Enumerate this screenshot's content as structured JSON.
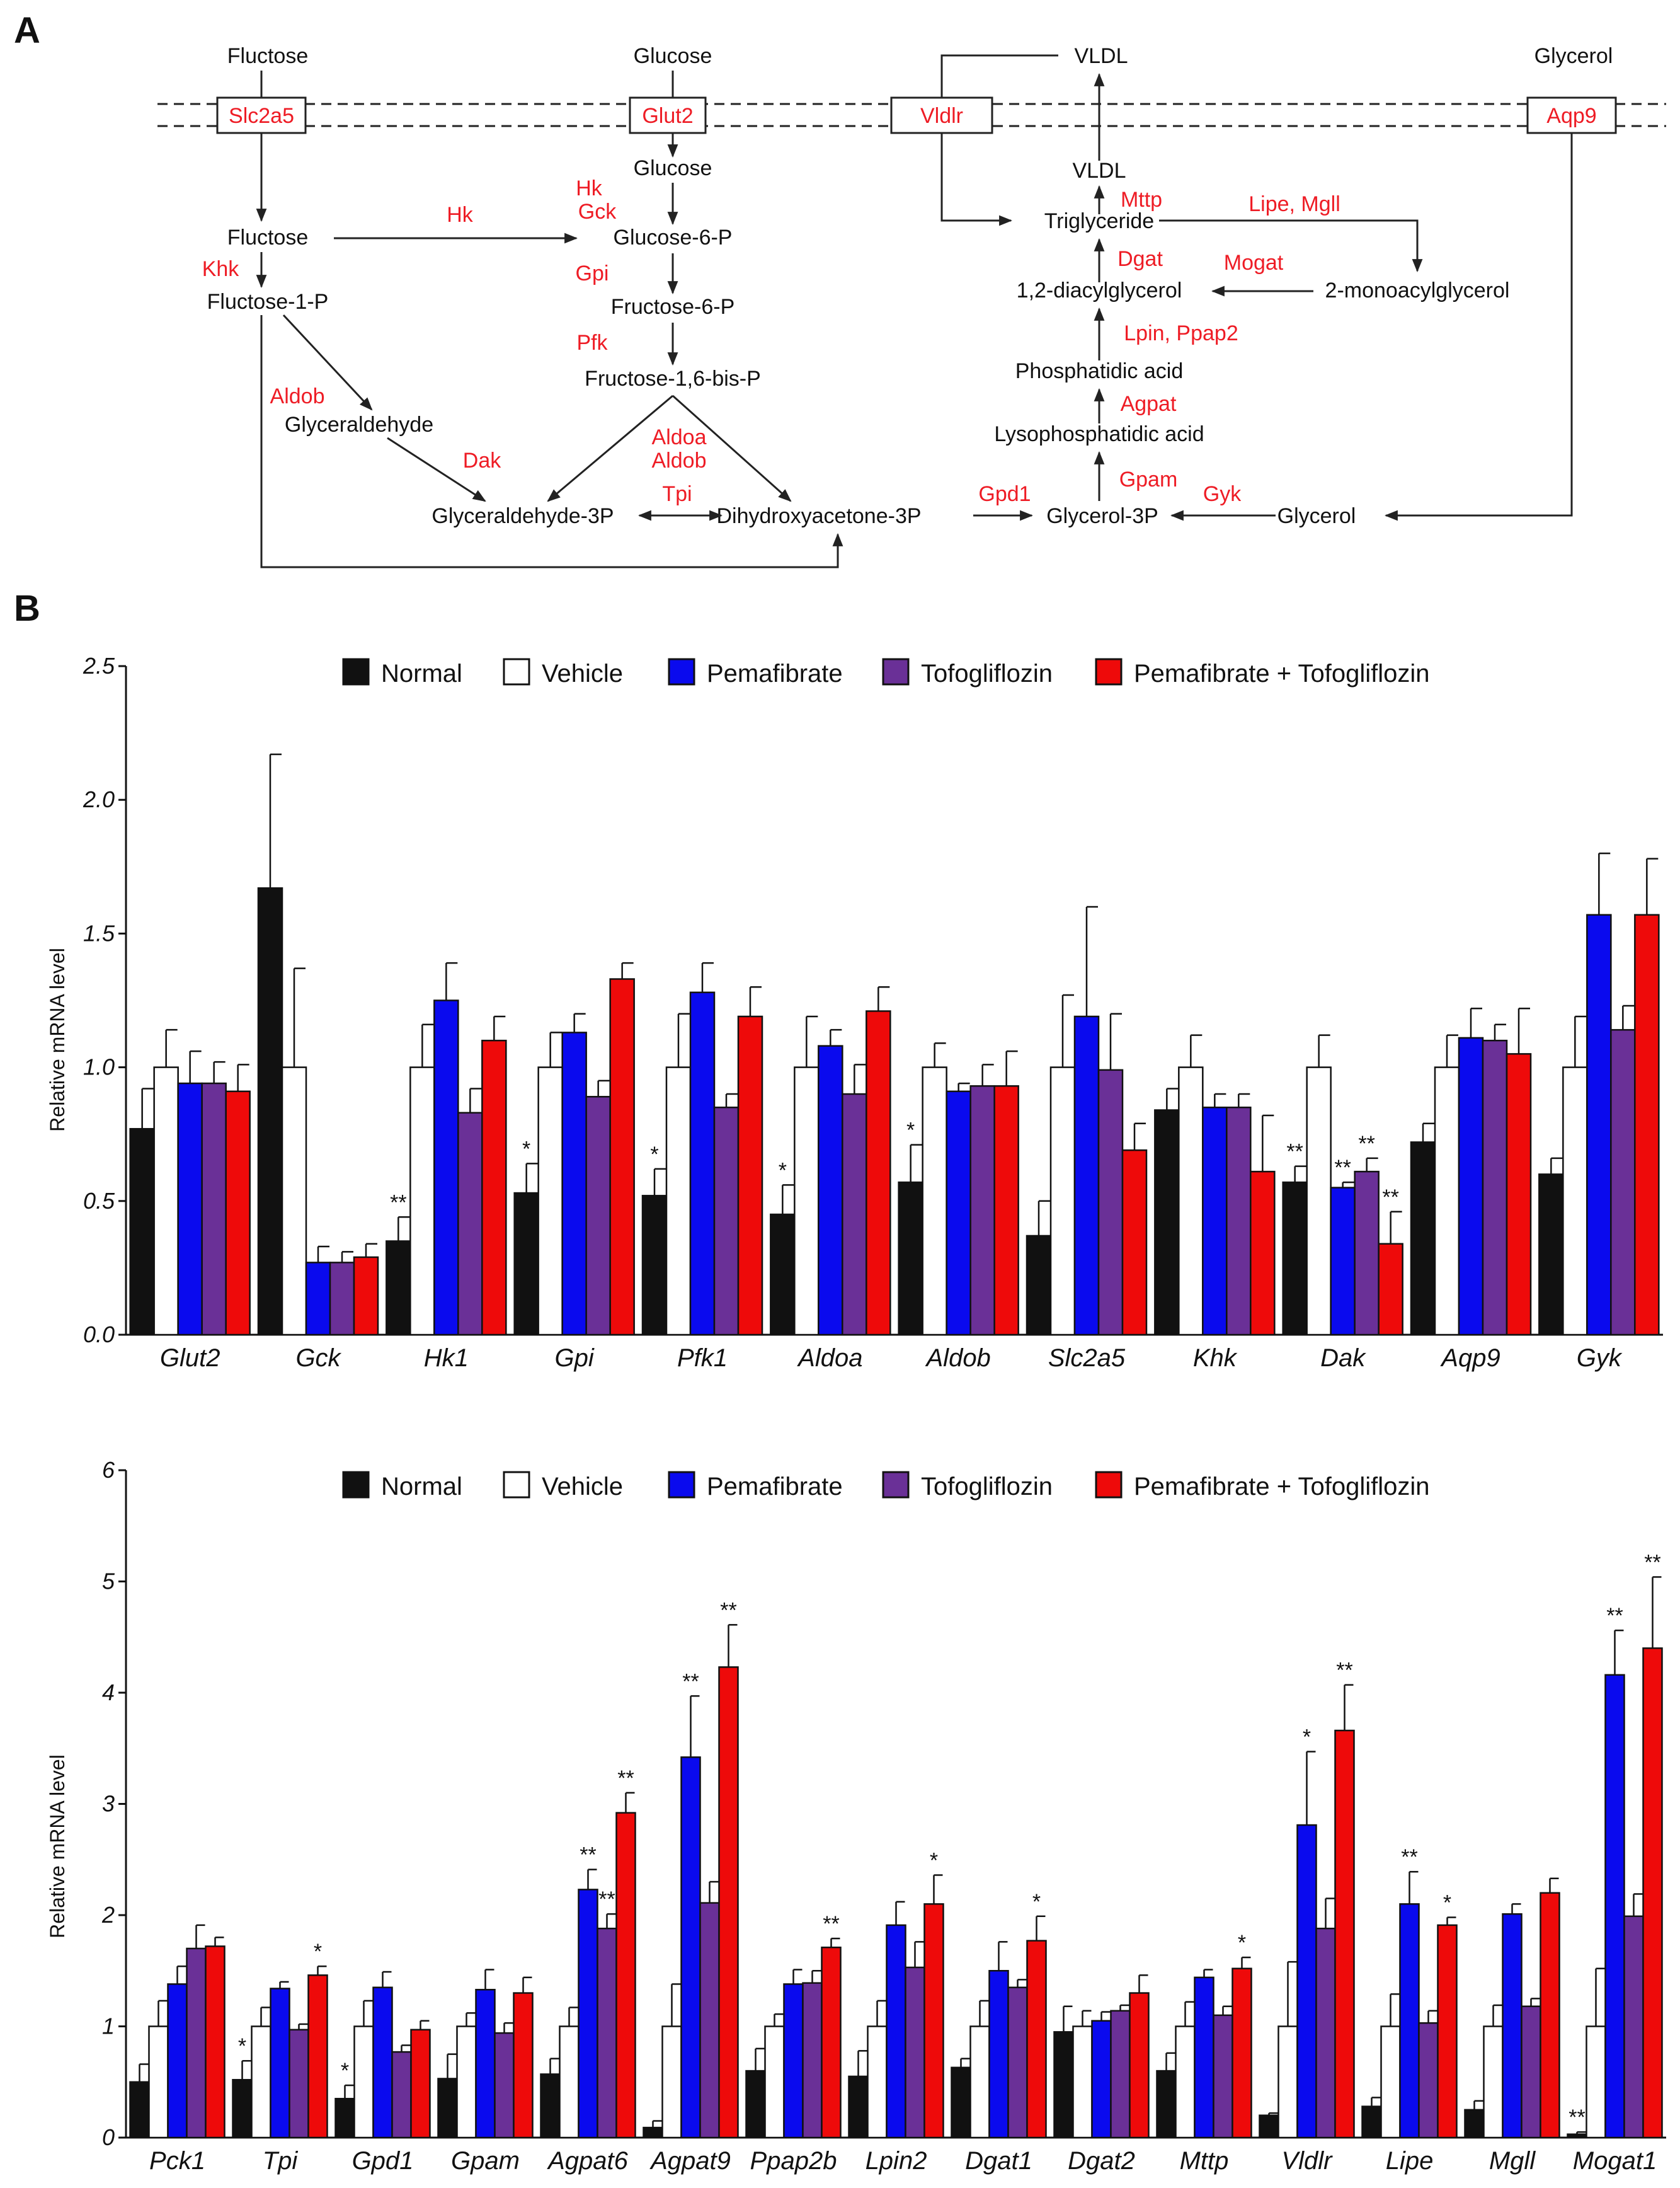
{
  "panel_a": {
    "label": "A",
    "nodes": {
      "fluctose_top": "Fluctose",
      "glucose_top": "Glucose",
      "vldl_top": "VLDL",
      "glycerol_top": "Glycerol",
      "fluctose": "Fluctose",
      "fluctose_1p": "Fluctose-1-P",
      "glyceraldehyde": "Glyceraldehyde",
      "glucose": "Glucose",
      "glucose_6p": "Glucose-6-P",
      "fructose_6p": "Fructose-6-P",
      "fructose_16bisp": "Fructose-1,6-bis-P",
      "glyceraldehyde_3p": "Glyceraldehyde-3P",
      "dhap": "Dihydroxyacetone-3P",
      "glycerol_3p": "Glycerol-3P",
      "glycerol": "Glycerol",
      "vldl": "VLDL",
      "triglyceride": "Triglyceride",
      "diacylglycerol": "1,2-diacylglycerol",
      "monoacylglycerol": "2-monoacylglycerol",
      "phosphatidic_acid": "Phosphatidic acid",
      "lysophosphatidic_acid": "Lysophosphatidic acid"
    },
    "transporters": {
      "slc2a5": "Slc2a5",
      "glut2": "Glut2",
      "vldlr": "Vldlr",
      "aqp9": "Aqp9"
    },
    "enzymes": {
      "khk": "Khk",
      "hk_left": "Hk",
      "hk": "Hk",
      "gck": "Gck",
      "gpi": "Gpi",
      "pfk": "Pfk",
      "aldob_left": "Aldob",
      "dak": "Dak",
      "aldoa": "Aldoa",
      "aldob": "Aldob",
      "tpi": "Tpi",
      "gpd1": "Gpd1",
      "gpam": "Gpam",
      "gyk": "Gyk",
      "agpat": "Agpat",
      "lpin_ppap2": "Lpin, Ppap2",
      "dgat": "Dgat",
      "mttp": "Mttp",
      "mogat": "Mogat",
      "lipe_mgll": "Lipe, Mgll"
    }
  },
  "panel_b": {
    "label": "B",
    "ylabel": "Relative mRNA level",
    "legend": [
      "Normal",
      "Vehicle",
      "Pemafibrate",
      "Tofogliflozin",
      "Pemafibrate + Tofogliflozin"
    ],
    "colors": {
      "normal": "#111111",
      "vehicle": "#ffffff",
      "pemafibrate": "#0a0aee",
      "tofogliflozin": "#6a3097",
      "combo": "#ee0a0a"
    }
  },
  "chart_data": [
    {
      "type": "bar",
      "title": "",
      "xlabel": "",
      "ylabel": "Relative mRNA level",
      "ylim": [
        0,
        2.5
      ],
      "yticks": [
        "0.0",
        "0.5",
        "1.0",
        "1.5",
        "2.0",
        "2.5"
      ],
      "categories": [
        "Glut2",
        "Gck",
        "Hk1",
        "Gpi",
        "Pfk1",
        "Aldoa",
        "Aldob",
        "Slc2a5",
        "Khk",
        "Dak",
        "Aqp9",
        "Gyk"
      ],
      "series": [
        {
          "name": "Normal",
          "values": [
            0.77,
            1.67,
            0.35,
            0.53,
            0.52,
            0.45,
            0.57,
            0.37,
            0.84,
            0.57,
            0.72,
            0.6
          ],
          "errors": [
            0.15,
            0.5,
            0.09,
            0.11,
            0.1,
            0.11,
            0.14,
            0.13,
            0.08,
            0.06,
            0.07,
            0.06
          ],
          "stars": [
            "",
            "",
            "**",
            "*",
            "*",
            "*",
            "*",
            "",
            "",
            "**",
            "",
            ""
          ]
        },
        {
          "name": "Vehicle",
          "values": [
            1.0,
            1.0,
            1.0,
            1.0,
            1.0,
            1.0,
            1.0,
            1.0,
            1.0,
            1.0,
            1.0,
            1.0
          ],
          "errors": [
            0.14,
            0.37,
            0.16,
            0.13,
            0.2,
            0.19,
            0.09,
            0.27,
            0.12,
            0.12,
            0.12,
            0.19
          ],
          "stars": [
            "",
            "",
            "",
            "",
            "",
            "",
            "",
            "",
            "",
            "",
            "",
            ""
          ]
        },
        {
          "name": "Pemafibrate",
          "values": [
            0.94,
            0.27,
            1.25,
            1.13,
            1.28,
            1.08,
            0.91,
            1.19,
            0.85,
            0.55,
            1.11,
            1.57
          ],
          "errors": [
            0.12,
            0.06,
            0.14,
            0.07,
            0.11,
            0.06,
            0.03,
            0.41,
            0.05,
            0.02,
            0.11,
            0.23
          ],
          "stars": [
            "",
            "",
            "",
            "",
            "",
            "",
            "",
            "",
            "",
            "**",
            "",
            ""
          ]
        },
        {
          "name": "Tofogliflozin",
          "values": [
            0.94,
            0.27,
            0.83,
            0.89,
            0.85,
            0.9,
            0.93,
            0.99,
            0.85,
            0.61,
            1.1,
            1.14
          ],
          "errors": [
            0.08,
            0.04,
            0.09,
            0.06,
            0.05,
            0.11,
            0.08,
            0.21,
            0.05,
            0.05,
            0.06,
            0.09
          ],
          "stars": [
            "",
            "",
            "",
            "",
            "",
            "",
            "",
            "",
            "",
            "**",
            "",
            ""
          ]
        },
        {
          "name": "Pemafibrate + Tofogliflozin",
          "values": [
            0.91,
            0.29,
            1.1,
            1.33,
            1.19,
            1.21,
            0.93,
            0.69,
            0.61,
            0.34,
            1.05,
            1.57
          ],
          "errors": [
            0.1,
            0.05,
            0.09,
            0.06,
            0.11,
            0.09,
            0.13,
            0.1,
            0.21,
            0.12,
            0.17,
            0.21
          ],
          "stars": [
            "",
            "",
            "",
            "",
            "",
            "",
            "",
            "",
            "",
            "**",
            "",
            ""
          ]
        }
      ]
    },
    {
      "type": "bar",
      "title": "",
      "xlabel": "",
      "ylabel": "Relative mRNA level",
      "ylim": [
        0,
        6
      ],
      "yticks": [
        "0",
        "1",
        "2",
        "3",
        "4",
        "5",
        "6"
      ],
      "categories": [
        "Pck1",
        "Tpi",
        "Gpd1",
        "Gpam",
        "Agpat6",
        "Agpat9",
        "Ppap2b",
        "Lpin2",
        "Dgat1",
        "Dgat2",
        "Mttp",
        "Vldlr",
        "Lipe",
        "Mgll",
        "Mogat1"
      ],
      "series": [
        {
          "name": "Normal",
          "values": [
            0.5,
            0.52,
            0.35,
            0.53,
            0.57,
            0.09,
            0.6,
            0.55,
            0.63,
            0.95,
            0.6,
            0.2,
            0.28,
            0.25,
            0.03
          ],
          "errors": [
            0.16,
            0.17,
            0.12,
            0.22,
            0.14,
            0.06,
            0.2,
            0.23,
            0.08,
            0.23,
            0.16,
            0.02,
            0.08,
            0.08,
            0.02
          ],
          "stars": [
            "",
            "*",
            "*",
            "",
            "",
            "",
            "",
            "",
            "",
            "",
            "",
            "",
            "",
            "",
            "**"
          ]
        },
        {
          "name": "Vehicle",
          "values": [
            1.0,
            1.0,
            1.0,
            1.0,
            1.0,
            1.0,
            1.0,
            1.0,
            1.0,
            1.0,
            1.0,
            1.0,
            1.0,
            1.0,
            1.0
          ],
          "errors": [
            0.23,
            0.17,
            0.23,
            0.12,
            0.17,
            0.38,
            0.11,
            0.23,
            0.23,
            0.14,
            0.22,
            0.58,
            0.29,
            0.19,
            0.52
          ],
          "stars": [
            "",
            "",
            "",
            "",
            "",
            "",
            "",
            "",
            "",
            "",
            "",
            "",
            "",
            "",
            ""
          ]
        },
        {
          "name": "Pemafibrate",
          "values": [
            1.38,
            1.34,
            1.35,
            1.33,
            2.23,
            3.42,
            1.38,
            1.91,
            1.5,
            1.05,
            1.44,
            2.81,
            2.1,
            2.01,
            4.16
          ],
          "errors": [
            0.16,
            0.06,
            0.14,
            0.18,
            0.18,
            0.55,
            0.13,
            0.21,
            0.26,
            0.08,
            0.07,
            0.66,
            0.29,
            0.09,
            0.4
          ],
          "stars": [
            "",
            "",
            "",
            "",
            "**",
            "**",
            "",
            "",
            "",
            "",
            "",
            "*",
            "**",
            "",
            "**"
          ]
        },
        {
          "name": "Tofogliflozin",
          "values": [
            1.7,
            0.97,
            0.77,
            0.94,
            1.88,
            2.11,
            1.39,
            1.53,
            1.35,
            1.14,
            1.1,
            1.88,
            1.03,
            1.18,
            1.99
          ],
          "errors": [
            0.21,
            0.05,
            0.06,
            0.09,
            0.13,
            0.19,
            0.11,
            0.23,
            0.07,
            0.05,
            0.08,
            0.27,
            0.11,
            0.07,
            0.2
          ],
          "stars": [
            "",
            "",
            "",
            "",
            "**",
            "",
            "",
            "",
            "",
            "",
            "",
            "",
            "",
            "",
            ""
          ]
        },
        {
          "name": "Pemafibrate + Tofogliflozin",
          "values": [
            1.72,
            1.46,
            0.97,
            1.3,
            2.92,
            4.23,
            1.71,
            2.1,
            1.77,
            1.3,
            1.52,
            3.66,
            1.91,
            2.2,
            4.4
          ],
          "errors": [
            0.08,
            0.08,
            0.08,
            0.14,
            0.18,
            0.38,
            0.08,
            0.26,
            0.22,
            0.16,
            0.1,
            0.41,
            0.07,
            0.13,
            0.64
          ],
          "stars": [
            "",
            "*",
            "",
            "",
            "**",
            "**",
            "**",
            "*",
            "*",
            "",
            "*",
            "**",
            "*",
            "",
            "**"
          ]
        }
      ]
    }
  ]
}
